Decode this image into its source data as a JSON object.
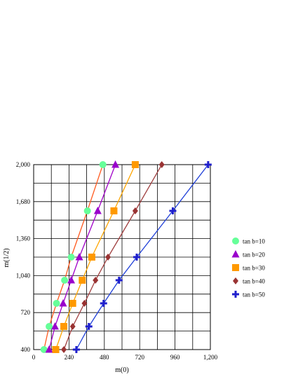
{
  "chart_data": {
    "type": "line",
    "title": "",
    "xlabel": "m(0)",
    "ylabel": "m(1/2)",
    "xlim": [
      0,
      1200
    ],
    "ylim": [
      400,
      2000
    ],
    "xticks": [
      "0",
      "240",
      "480",
      "720",
      "960",
      "1,200"
    ],
    "yticks": [
      "400",
      "720",
      "1,040",
      "1,360",
      "1,680",
      "2,000"
    ],
    "x_gridline_step": 120,
    "y_gridline_step": 160,
    "legend_position": "right",
    "series": [
      {
        "name": "tan b=10",
        "marker": "circle",
        "line_color": "#ff5a1f",
        "marker_color": "#66ff99",
        "points": [
          [
            70,
            400
          ],
          [
            105,
            600
          ],
          [
            155,
            800
          ],
          [
            210,
            1000
          ],
          [
            255,
            1200
          ],
          [
            365,
            1600
          ],
          [
            470,
            2000
          ]
        ]
      },
      {
        "name": "tan b=20",
        "marker": "triangle",
        "line_color": "#a000c8",
        "marker_color": "#9900cc",
        "points": [
          [
            105,
            400
          ],
          [
            145,
            600
          ],
          [
            200,
            800
          ],
          [
            255,
            1000
          ],
          [
            310,
            1200
          ],
          [
            435,
            1600
          ],
          [
            555,
            2000
          ]
        ]
      },
      {
        "name": "tan b=30",
        "marker": "square",
        "line_color": "#ffa500",
        "marker_color": "#ff9900",
        "points": [
          [
            150,
            400
          ],
          [
            205,
            600
          ],
          [
            265,
            800
          ],
          [
            330,
            1000
          ],
          [
            395,
            1200
          ],
          [
            545,
            1600
          ],
          [
            690,
            2000
          ]
        ]
      },
      {
        "name": "tan b=40",
        "marker": "diamond",
        "line_color": "#a04040",
        "marker_color": "#993333",
        "points": [
          [
            205,
            400
          ],
          [
            265,
            600
          ],
          [
            345,
            800
          ],
          [
            420,
            1000
          ],
          [
            505,
            1200
          ],
          [
            690,
            1600
          ],
          [
            870,
            2000
          ]
        ]
      },
      {
        "name": "tan b=50",
        "marker": "cross",
        "line_color": "#1f3fd8",
        "marker_color": "#1f1fcc",
        "points": [
          [
            290,
            400
          ],
          [
            375,
            600
          ],
          [
            475,
            800
          ],
          [
            580,
            1000
          ],
          [
            700,
            1200
          ],
          [
            945,
            1600
          ],
          [
            1185,
            2000
          ]
        ]
      }
    ]
  }
}
